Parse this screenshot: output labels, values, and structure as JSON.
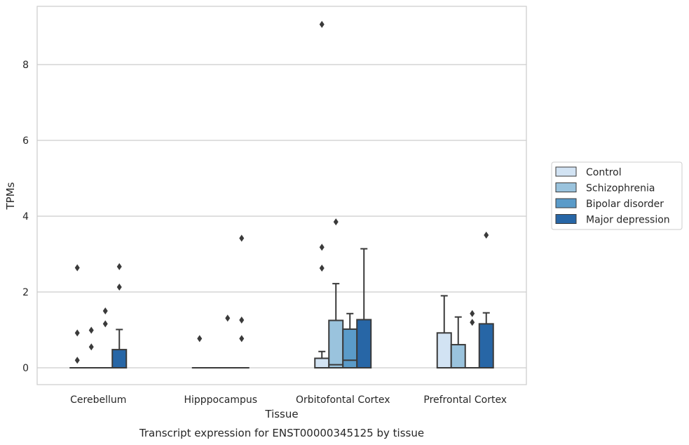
{
  "caption": "Transcript expression for ENST00000345125 by tissue",
  "chart_data": {
    "type": "box",
    "xlabel": "Tissue",
    "ylabel": "TPMs",
    "ylim": [
      -0.45,
      9.6
    ],
    "yticks": [
      0,
      2,
      4,
      6,
      8
    ],
    "grid": "horizontal",
    "legend_position": "right",
    "categories": [
      "Cerebellum",
      "Hipppocampus",
      "Orbitofontal Cortex",
      "Prefrontal Cortex"
    ],
    "series": [
      {
        "name": "Control",
        "color": "#d2e3f3",
        "boxes": [
          {
            "q1": 0,
            "median": 0,
            "q3": 0,
            "whisker_low": 0,
            "whisker_high": 0,
            "outliers": [
              0.2,
              0.92,
              2.64
            ]
          },
          {
            "q1": 0,
            "median": 0,
            "q3": 0,
            "whisker_low": 0,
            "whisker_high": 0,
            "outliers": [
              0.77
            ]
          },
          {
            "q1": 0,
            "median": 0,
            "q3": 0.25,
            "whisker_low": 0,
            "whisker_high": 0.43,
            "outliers": [
              2.63,
              3.18,
              9.06
            ]
          },
          {
            "q1": 0,
            "median": 0,
            "q3": 0.92,
            "whisker_low": 0,
            "whisker_high": 1.9,
            "outliers": []
          }
        ]
      },
      {
        "name": "Schizophrenia",
        "color": "#9ac3dd",
        "boxes": [
          {
            "q1": 0,
            "median": 0,
            "q3": 0,
            "whisker_low": 0,
            "whisker_high": 0,
            "outliers": [
              0.55,
              0.99
            ]
          },
          {
            "q1": 0,
            "median": 0,
            "q3": 0,
            "whisker_low": 0,
            "whisker_high": 0,
            "outliers": []
          },
          {
            "q1": 0,
            "median": 0.08,
            "q3": 1.25,
            "whisker_low": 0,
            "whisker_high": 2.22,
            "outliers": [
              3.85
            ]
          },
          {
            "q1": 0,
            "median": 0,
            "q3": 0.61,
            "whisker_low": 0,
            "whisker_high": 1.34,
            "outliers": []
          }
        ]
      },
      {
        "name": "Bipolar disorder",
        "color": "#5a9bc9",
        "boxes": [
          {
            "q1": 0,
            "median": 0,
            "q3": 0,
            "whisker_low": 0,
            "whisker_high": 0,
            "outliers": [
              1.16,
              1.5
            ]
          },
          {
            "q1": 0,
            "median": 0,
            "q3": 0,
            "whisker_low": 0,
            "whisker_high": 0,
            "outliers": [
              1.31
            ]
          },
          {
            "q1": 0,
            "median": 0.2,
            "q3": 1.02,
            "whisker_low": 0,
            "whisker_high": 1.43,
            "outliers": []
          },
          {
            "q1": 0,
            "median": 0,
            "q3": 0,
            "whisker_low": 0,
            "whisker_high": 0,
            "outliers": [
              1.2,
              1.43
            ]
          }
        ]
      },
      {
        "name": "Major depression",
        "color": "#2766a6",
        "boxes": [
          {
            "q1": 0,
            "median": 0,
            "q3": 0.48,
            "whisker_low": 0,
            "whisker_high": 1.01,
            "outliers": [
              2.13,
              2.67
            ]
          },
          {
            "q1": 0,
            "median": 0,
            "q3": 0,
            "whisker_low": 0,
            "whisker_high": 0,
            "outliers": [
              0.77,
              1.26,
              3.42
            ]
          },
          {
            "q1": 0,
            "median": 0,
            "q3": 1.27,
            "whisker_low": 0,
            "whisker_high": 3.14,
            "outliers": []
          },
          {
            "q1": 0,
            "median": 0,
            "q3": 1.16,
            "whisker_low": 0,
            "whisker_high": 1.45,
            "outliers": [
              3.5
            ]
          }
        ]
      }
    ]
  }
}
